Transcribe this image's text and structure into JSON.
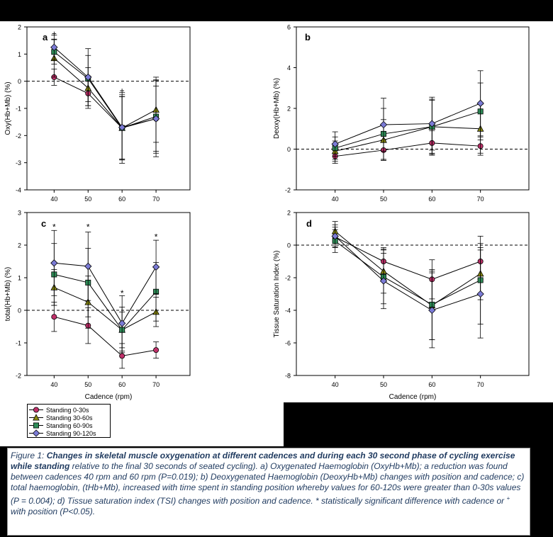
{
  "colors": {
    "s0": "#c0306a",
    "s1": "#8a8a10",
    "s2": "#2e8b57",
    "s3": "#7b7bd6"
  },
  "legend": [
    {
      "key": "s0",
      "label": "Standing 0-30s",
      "marker": "circle"
    },
    {
      "key": "s1",
      "label": "Standing 30-60s",
      "marker": "triangle"
    },
    {
      "key": "s2",
      "label": "Standing 60-90s",
      "marker": "square"
    },
    {
      "key": "s3",
      "label": "Standing 90-120s",
      "marker": "diamond"
    }
  ],
  "xlabel": "Cadence (rpm)",
  "chart_data": [
    {
      "id": "a",
      "type": "line",
      "panel_letter": "a",
      "ylabel": "Oxy(Hb+Mb) (%)",
      "x": [
        40,
        50,
        60,
        70
      ],
      "xlim": [
        32,
        80
      ],
      "ylim": [
        -4,
        2
      ],
      "yticks": [
        -4,
        -3,
        -2,
        -1,
        0,
        1,
        2
      ],
      "series": [
        {
          "key": "s0",
          "values": [
            0.15,
            -0.45,
            -1.72,
            -1.38
          ],
          "err": [
            0.3,
            0.45,
            1.3,
            1.2
          ]
        },
        {
          "key": "s1",
          "values": [
            0.85,
            -0.25,
            -1.72,
            -1.05
          ],
          "err": [
            0.7,
            0.75,
            1.15,
            1.2
          ]
        },
        {
          "key": "s2",
          "values": [
            1.08,
            0.1,
            -1.72,
            -1.3
          ],
          "err": [
            0.45,
            0.85,
            1.15,
            1.35
          ]
        },
        {
          "key": "s3",
          "values": [
            1.25,
            0.15,
            -1.7,
            -1.38
          ],
          "err": [
            0.45,
            1.05,
            1.2,
            1.4
          ]
        }
      ],
      "annotations": [
        {
          "x": 40,
          "y": 1.75,
          "text": "+"
        },
        {
          "x": 60,
          "y": -0.35,
          "text": "+"
        }
      ]
    },
    {
      "id": "b",
      "type": "line",
      "panel_letter": "b",
      "ylabel": "Deoxy(Hb+Mb) (%)",
      "x": [
        40,
        50,
        60,
        70
      ],
      "xlim": [
        32,
        80
      ],
      "ylim": [
        -2,
        6
      ],
      "yticks": [
        -2,
        0,
        2,
        4,
        6
      ],
      "series": [
        {
          "key": "s0",
          "values": [
            -0.35,
            -0.05,
            0.3,
            0.15
          ],
          "err": [
            0.35,
            0.5,
            0.6,
            0.45
          ]
        },
        {
          "key": "s1",
          "values": [
            -0.1,
            0.45,
            1.1,
            1.0
          ],
          "err": [
            0.5,
            1.0,
            1.3,
            1.2
          ]
        },
        {
          "key": "s2",
          "values": [
            0.05,
            0.75,
            1.1,
            1.85
          ],
          "err": [
            0.55,
            1.25,
            1.35,
            1.4
          ]
        },
        {
          "key": "s3",
          "values": [
            0.25,
            1.2,
            1.25,
            2.25
          ],
          "err": [
            0.6,
            1.3,
            1.3,
            1.6
          ]
        }
      ],
      "annotations": []
    },
    {
      "id": "c",
      "type": "line",
      "panel_letter": "c",
      "ylabel": "total(Hb+Mb) (%)",
      "x": [
        40,
        50,
        60,
        70
      ],
      "xlim": [
        32,
        80
      ],
      "ylim": [
        -2,
        3
      ],
      "yticks": [
        -2,
        -1,
        0,
        1,
        2,
        3
      ],
      "series": [
        {
          "key": "s0",
          "values": [
            -0.2,
            -0.47,
            -1.4,
            -1.22
          ],
          "err": [
            0.45,
            0.55,
            0.38,
            0.25
          ]
        },
        {
          "key": "s1",
          "values": [
            0.7,
            0.25,
            -0.6,
            -0.05
          ],
          "err": [
            0.55,
            0.8,
            0.55,
            0.45
          ]
        },
        {
          "key": "s2",
          "values": [
            1.1,
            0.85,
            -0.6,
            0.57
          ],
          "err": [
            0.95,
            1.05,
            0.7,
            0.9
          ]
        },
        {
          "key": "s3",
          "values": [
            1.45,
            1.35,
            -0.4,
            1.33
          ],
          "err": [
            1.0,
            1.05,
            0.85,
            0.82
          ]
        }
      ],
      "annotations": [
        {
          "x": 40,
          "y": 2.55,
          "text": "*"
        },
        {
          "x": 50,
          "y": 2.55,
          "text": "*"
        },
        {
          "x": 60,
          "y": 0.52,
          "text": "*"
        },
        {
          "x": 70,
          "y": 2.25,
          "text": "*"
        }
      ]
    },
    {
      "id": "d",
      "type": "line",
      "panel_letter": "d",
      "ylabel": "Tissue Saturation Index (%)",
      "x": [
        40,
        50,
        60,
        70
      ],
      "xlim": [
        32,
        80
      ],
      "ylim": [
        -8,
        2
      ],
      "yticks": [
        -8,
        -6,
        -4,
        -2,
        0,
        2
      ],
      "series": [
        {
          "key": "s0",
          "values": [
            0.5,
            -1.0,
            -2.1,
            -1.0
          ],
          "err": [
            0.6,
            0.85,
            1.2,
            1.1
          ]
        },
        {
          "key": "s1",
          "values": [
            0.85,
            -1.6,
            -3.7,
            -1.75
          ],
          "err": [
            0.6,
            1.35,
            2.1,
            1.6
          ]
        },
        {
          "key": "s2",
          "values": [
            0.25,
            -1.95,
            -3.65,
            -2.15
          ],
          "err": [
            0.7,
            1.65,
            2.15,
            2.7
          ]
        },
        {
          "key": "s3",
          "values": [
            0.55,
            -2.2,
            -4.0,
            -3.0
          ],
          "err": [
            0.7,
            1.7,
            2.3,
            2.7
          ]
        }
      ],
      "annotations": []
    }
  ],
  "caption": {
    "prefix": "Figure 1: ",
    "bold": "Changes in skeletal muscle oxygenation at different cadences and during each 30 second phase of cycling exercise while standing",
    "rest": " relative to the final 30 seconds of seated cycling). a) Oxygenated Haemoglobin (OxyHb+Mb); a reduction was found between cadences 40 rpm and 60 rpm (P=0.019); b) Deoxygenated Haemoglobin (DeoxyHb+Mb) changes with position and cadence; c) total haemoglobin, (tHb+Mb), increased with time spent in standing position whereby values for 60-120s were greater than 0-30s values (P = 0.004); d) Tissue saturation index (TSI) changes with position and cadence.  * statistically significant difference with cadence or ",
    "plus": "+",
    "end": " with position (P<0.05)."
  }
}
